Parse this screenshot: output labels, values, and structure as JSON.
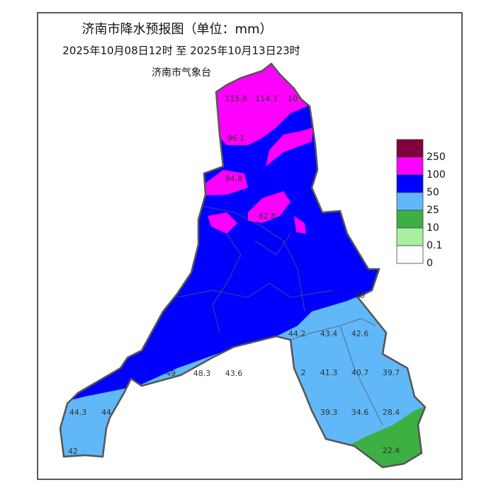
{
  "title": "济南市降水预报图（单位：mm）",
  "subtitle": "2025年10月08日12时  至  2025年10月13日23时",
  "issuer": "济南市气象台",
  "legend": [
    {
      "label": 250,
      "color": "#800040"
    },
    {
      "label": 100,
      "color": "#ff00ff"
    },
    {
      "label": 50,
      "color": "#0000ff"
    },
    {
      "label": 25,
      "color": "#61b8f8"
    },
    {
      "label": 10,
      "color": "#3cb043"
    },
    {
      "label": 0.1,
      "color": "#a8f0a0"
    },
    {
      "label": 0,
      "color": "#ffffff"
    }
  ],
  "stations": [
    115.8,
    114.3,
    10,
    96.1,
    94.8,
    82.8,
    50,
    44.2,
    43.4,
    42.6,
    49,
    48.3,
    43.6,
    2,
    41.3,
    40.7,
    39.7,
    39.3,
    34.6,
    28.4,
    22.4,
    44.3,
    44,
    42
  ]
}
